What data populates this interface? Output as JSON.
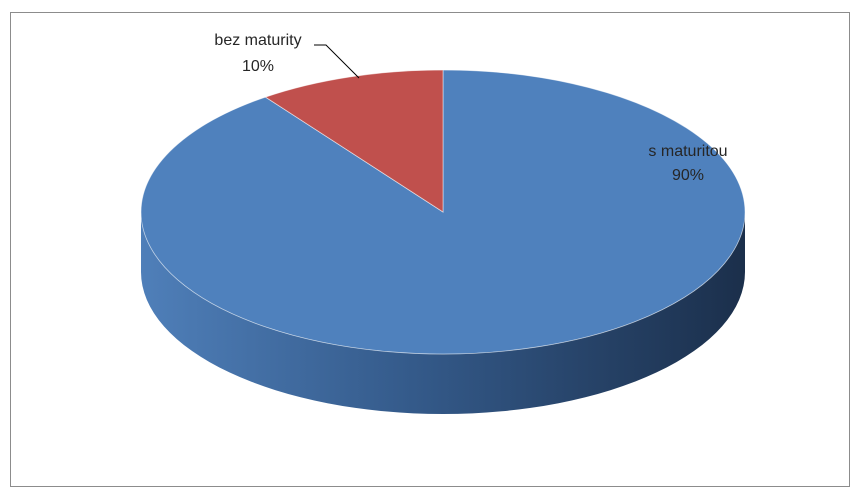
{
  "chart_data": {
    "type": "pie",
    "style": "3d",
    "title": "",
    "categories": [
      "s maturitou",
      "bez maturity"
    ],
    "values": [
      90,
      10
    ],
    "labels": [
      {
        "name": "s maturitou",
        "percent": "90%"
      },
      {
        "name": "bez maturity",
        "percent": "10%"
      }
    ],
    "colors": {
      "s maturitou": "#4f81bd",
      "bez maturity": "#c0504d"
    },
    "legend": "none"
  }
}
